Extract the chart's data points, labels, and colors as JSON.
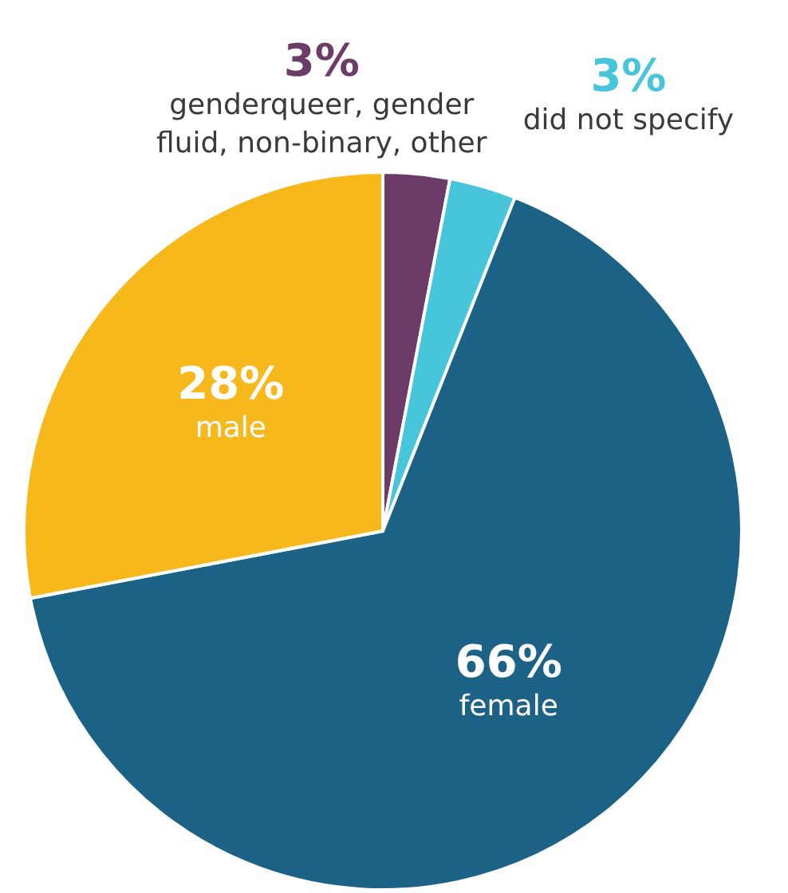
{
  "chart_data": {
    "type": "pie",
    "categories": [
      "genderqueer, gender fluid, non-binary, other",
      "did not specify",
      "female",
      "male"
    ],
    "values": [
      3,
      3,
      66,
      28
    ],
    "value_labels": [
      "3%",
      "3%",
      "66%",
      "28%"
    ],
    "colors": [
      "#6d3b68",
      "#47c5da",
      "#1c6286",
      "#f6b81a"
    ]
  }
}
